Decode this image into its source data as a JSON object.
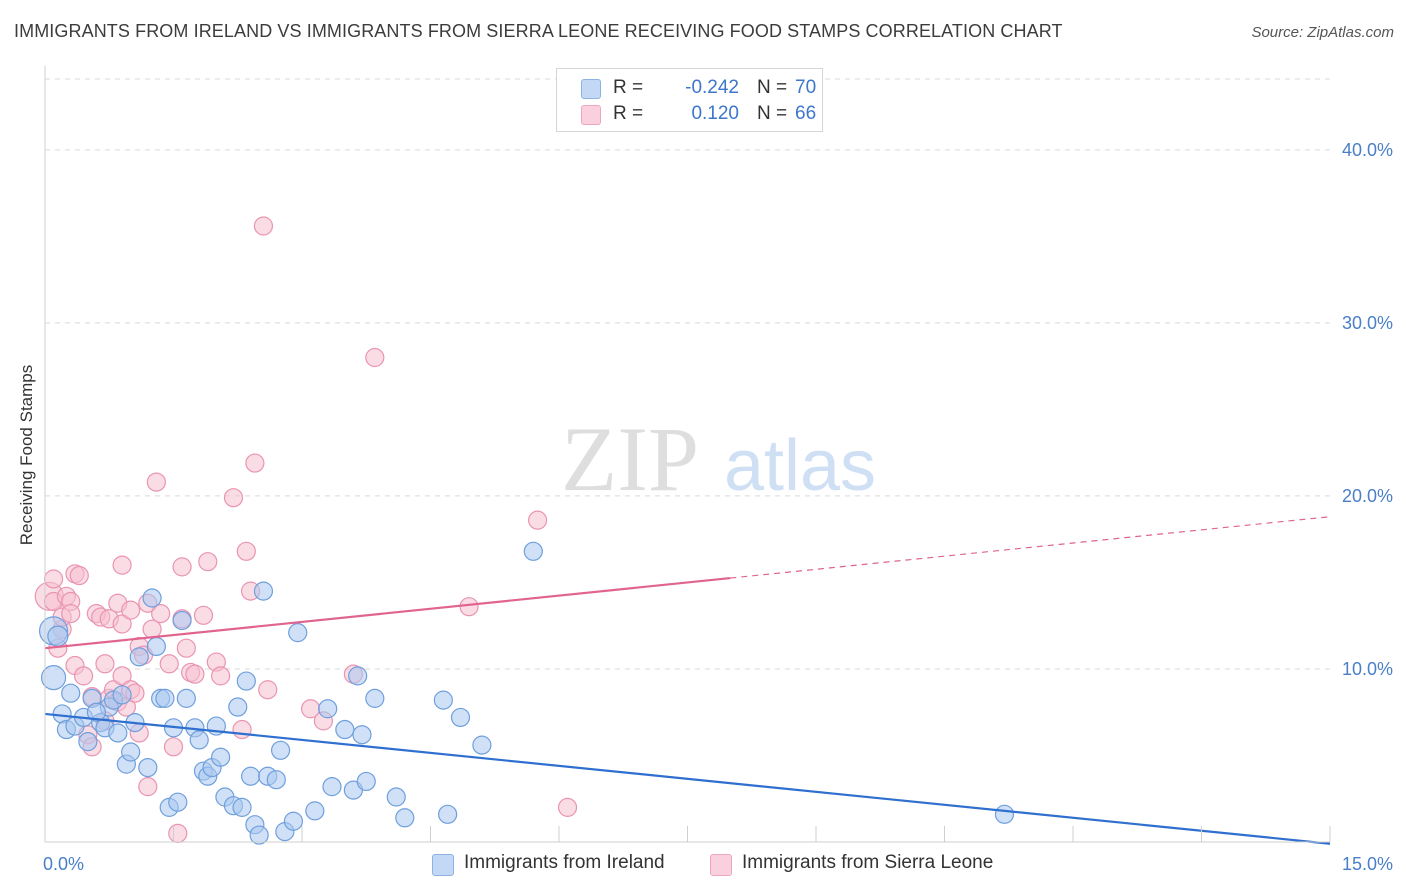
{
  "header": {
    "title": "IMMIGRANTS FROM IRELAND VS IMMIGRANTS FROM SIERRA LEONE RECEIVING FOOD STAMPS CORRELATION CHART",
    "source": "Source: ZipAtlas.com"
  },
  "watermark": {
    "zip": "ZIP",
    "atlas": "atlas"
  },
  "legend_top": {
    "rows": [
      {
        "r_label": "R =",
        "r_value": "-0.242",
        "n_label": "N =",
        "n_value": "70"
      },
      {
        "r_label": "R =",
        "r_value": "0.120",
        "n_label": "N =",
        "n_value": "66"
      }
    ]
  },
  "legend_bottom": {
    "ireland": "Immigrants from Ireland",
    "sierra_leone": "Immigrants from Sierra Leone"
  },
  "colors": {
    "ireland_fill": "#a9c8f0",
    "ireland_stroke": "#6f9fdc",
    "ireland_line": "#2f6fd0",
    "sierra_fill": "#f6bfd0",
    "sierra_stroke": "#ea94b2",
    "sierra_line": "#e0648e",
    "tick": "#4a7fc8",
    "grid": "#d9d9d9"
  },
  "chart_data": {
    "type": "scatter",
    "title": "IMMIGRANTS FROM IRELAND VS IMMIGRANTS FROM SIERRA LEONE RECEIVING FOOD STAMPS CORRELATION CHART",
    "xlabel": "",
    "ylabel": "Receiving Food Stamps",
    "xlim": [
      0,
      15
    ],
    "ylim": [
      0,
      40
    ],
    "x_tick_labels": [
      {
        "value": 0,
        "label": "0.0%"
      },
      {
        "value": 15,
        "label": "15.0%"
      }
    ],
    "y_tick_labels": [
      {
        "value": 10,
        "label": "10.0%"
      },
      {
        "value": 20,
        "label": "20.0%"
      },
      {
        "value": 30,
        "label": "30.0%"
      },
      {
        "value": 40,
        "label": "40.0%"
      }
    ],
    "x_minor_ticks": [
      0,
      1.5,
      3,
      4.5,
      6,
      7.5,
      9,
      10.5,
      12,
      13.5,
      15
    ],
    "grid": true,
    "legend_position": "bottom",
    "series": [
      {
        "name": "Immigrants from Ireland",
        "R": -0.242,
        "N": 70,
        "trend": {
          "x": [
            0,
            15
          ],
          "y": [
            7.4,
            -0.1
          ],
          "dashed_from_x": null
        },
        "points": [
          [
            0.1,
            12.2,
            14
          ],
          [
            0.15,
            11.9,
            10
          ],
          [
            0.1,
            9.5,
            12
          ],
          [
            0.2,
            7.4,
            9
          ],
          [
            0.25,
            6.5,
            9
          ],
          [
            0.35,
            6.7,
            9
          ],
          [
            0.3,
            8.6,
            9
          ],
          [
            0.45,
            7.2,
            9
          ],
          [
            0.5,
            5.8,
            9
          ],
          [
            0.55,
            8.3,
            9
          ],
          [
            0.65,
            6.9,
            9
          ],
          [
            0.7,
            6.6,
            9
          ],
          [
            0.75,
            7.8,
            9
          ],
          [
            0.8,
            8.2,
            9
          ],
          [
            0.85,
            6.3,
            9
          ],
          [
            0.9,
            8.5,
            9
          ],
          [
            0.95,
            4.5,
            9
          ],
          [
            1.0,
            5.2,
            9
          ],
          [
            1.05,
            6.9,
            9
          ],
          [
            1.1,
            10.7,
            9
          ],
          [
            1.2,
            4.3,
            9
          ],
          [
            1.25,
            14.1,
            9
          ],
          [
            1.3,
            11.3,
            9
          ],
          [
            1.35,
            8.3,
            9
          ],
          [
            1.4,
            8.3,
            9
          ],
          [
            1.45,
            2.0,
            9
          ],
          [
            1.5,
            6.6,
            9
          ],
          [
            1.55,
            2.3,
            9
          ],
          [
            1.6,
            12.8,
            9
          ],
          [
            1.65,
            8.3,
            9
          ],
          [
            1.75,
            6.6,
            9
          ],
          [
            1.8,
            5.9,
            9
          ],
          [
            1.85,
            4.1,
            9
          ],
          [
            1.9,
            3.8,
            9
          ],
          [
            1.95,
            4.3,
            9
          ],
          [
            2.0,
            6.7,
            9
          ],
          [
            2.05,
            4.9,
            9
          ],
          [
            2.1,
            2.6,
            9
          ],
          [
            2.2,
            2.1,
            9
          ],
          [
            2.25,
            7.8,
            9
          ],
          [
            2.3,
            2.0,
            9
          ],
          [
            2.35,
            9.3,
            9
          ],
          [
            2.4,
            3.8,
            9
          ],
          [
            2.45,
            1.0,
            9
          ],
          [
            2.5,
            0.4,
            9
          ],
          [
            2.55,
            14.5,
            9
          ],
          [
            2.6,
            3.8,
            9
          ],
          [
            2.7,
            3.6,
            9
          ],
          [
            2.75,
            5.3,
            9
          ],
          [
            2.8,
            0.6,
            9
          ],
          [
            2.9,
            1.2,
            9
          ],
          [
            2.95,
            12.1,
            9
          ],
          [
            3.15,
            1.8,
            9
          ],
          [
            3.3,
            7.7,
            9
          ],
          [
            3.35,
            3.2,
            9
          ],
          [
            3.5,
            6.5,
            9
          ],
          [
            3.6,
            3.0,
            9
          ],
          [
            3.65,
            9.6,
            9
          ],
          [
            3.7,
            6.2,
            9
          ],
          [
            3.75,
            3.5,
            9
          ],
          [
            3.85,
            8.3,
            9
          ],
          [
            4.1,
            2.6,
            9
          ],
          [
            4.2,
            1.4,
            9
          ],
          [
            4.65,
            8.2,
            9
          ],
          [
            4.7,
            1.6,
            9
          ],
          [
            4.85,
            7.2,
            9
          ],
          [
            5.1,
            5.6,
            9
          ],
          [
            5.7,
            16.8,
            9
          ],
          [
            11.2,
            1.6,
            9
          ],
          [
            0.6,
            7.5,
            9
          ]
        ]
      },
      {
        "name": "Immigrants from Sierra Leone",
        "R": 0.12,
        "N": 66,
        "trend": {
          "x": [
            0,
            15
          ],
          "y": [
            11.2,
            18.8
          ],
          "dashed_from_x": 8.0
        },
        "points": [
          [
            0.05,
            14.2,
            14
          ],
          [
            0.1,
            13.9,
            9
          ],
          [
            0.1,
            15.2,
            9
          ],
          [
            0.15,
            11.2,
            9
          ],
          [
            0.2,
            12.3,
            9
          ],
          [
            0.2,
            13.0,
            9
          ],
          [
            0.25,
            14.2,
            9
          ],
          [
            0.3,
            13.9,
            9
          ],
          [
            0.3,
            13.2,
            9
          ],
          [
            0.35,
            10.2,
            9
          ],
          [
            0.35,
            15.5,
            9
          ],
          [
            0.4,
            15.4,
            9
          ],
          [
            0.45,
            9.6,
            9
          ],
          [
            0.5,
            6.2,
            9
          ],
          [
            0.55,
            5.5,
            9
          ],
          [
            0.55,
            8.4,
            9
          ],
          [
            0.6,
            13.2,
            9
          ],
          [
            0.65,
            13.0,
            9
          ],
          [
            0.7,
            7.0,
            9
          ],
          [
            0.7,
            10.3,
            9
          ],
          [
            0.75,
            8.3,
            9
          ],
          [
            0.75,
            12.9,
            9
          ],
          [
            0.8,
            8.8,
            9
          ],
          [
            0.85,
            13.8,
            9
          ],
          [
            0.85,
            8.1,
            9
          ],
          [
            0.9,
            12.6,
            9
          ],
          [
            0.9,
            16.0,
            9
          ],
          [
            0.9,
            9.6,
            9
          ],
          [
            0.95,
            7.8,
            9
          ],
          [
            1.0,
            8.8,
            9
          ],
          [
            1.0,
            13.4,
            9
          ],
          [
            1.05,
            8.6,
            9
          ],
          [
            1.1,
            11.3,
            9
          ],
          [
            1.1,
            6.3,
            9
          ],
          [
            1.15,
            10.8,
            9
          ],
          [
            1.2,
            3.2,
            9
          ],
          [
            1.2,
            13.8,
            9
          ],
          [
            1.25,
            12.3,
            9
          ],
          [
            1.3,
            20.8,
            9
          ],
          [
            1.35,
            13.2,
            9
          ],
          [
            1.45,
            10.3,
            9
          ],
          [
            1.5,
            5.5,
            9
          ],
          [
            1.55,
            0.5,
            9
          ],
          [
            1.6,
            15.9,
            9
          ],
          [
            1.6,
            12.9,
            9
          ],
          [
            1.65,
            11.2,
            9
          ],
          [
            1.7,
            9.8,
            9
          ],
          [
            1.75,
            9.7,
            9
          ],
          [
            1.85,
            13.1,
            9
          ],
          [
            1.9,
            16.2,
            9
          ],
          [
            2.0,
            10.4,
            9
          ],
          [
            2.05,
            9.6,
            9
          ],
          [
            2.2,
            19.9,
            9
          ],
          [
            2.3,
            6.5,
            9
          ],
          [
            2.35,
            16.8,
            9
          ],
          [
            2.4,
            14.5,
            9
          ],
          [
            2.45,
            21.9,
            9
          ],
          [
            2.55,
            35.6,
            9
          ],
          [
            2.6,
            8.8,
            9
          ],
          [
            3.1,
            7.7,
            9
          ],
          [
            3.25,
            7.0,
            9
          ],
          [
            3.6,
            9.7,
            9
          ],
          [
            3.85,
            28.0,
            9
          ],
          [
            4.95,
            13.6,
            9
          ],
          [
            5.75,
            18.6,
            9
          ],
          [
            6.1,
            2.0,
            9
          ]
        ]
      }
    ]
  }
}
